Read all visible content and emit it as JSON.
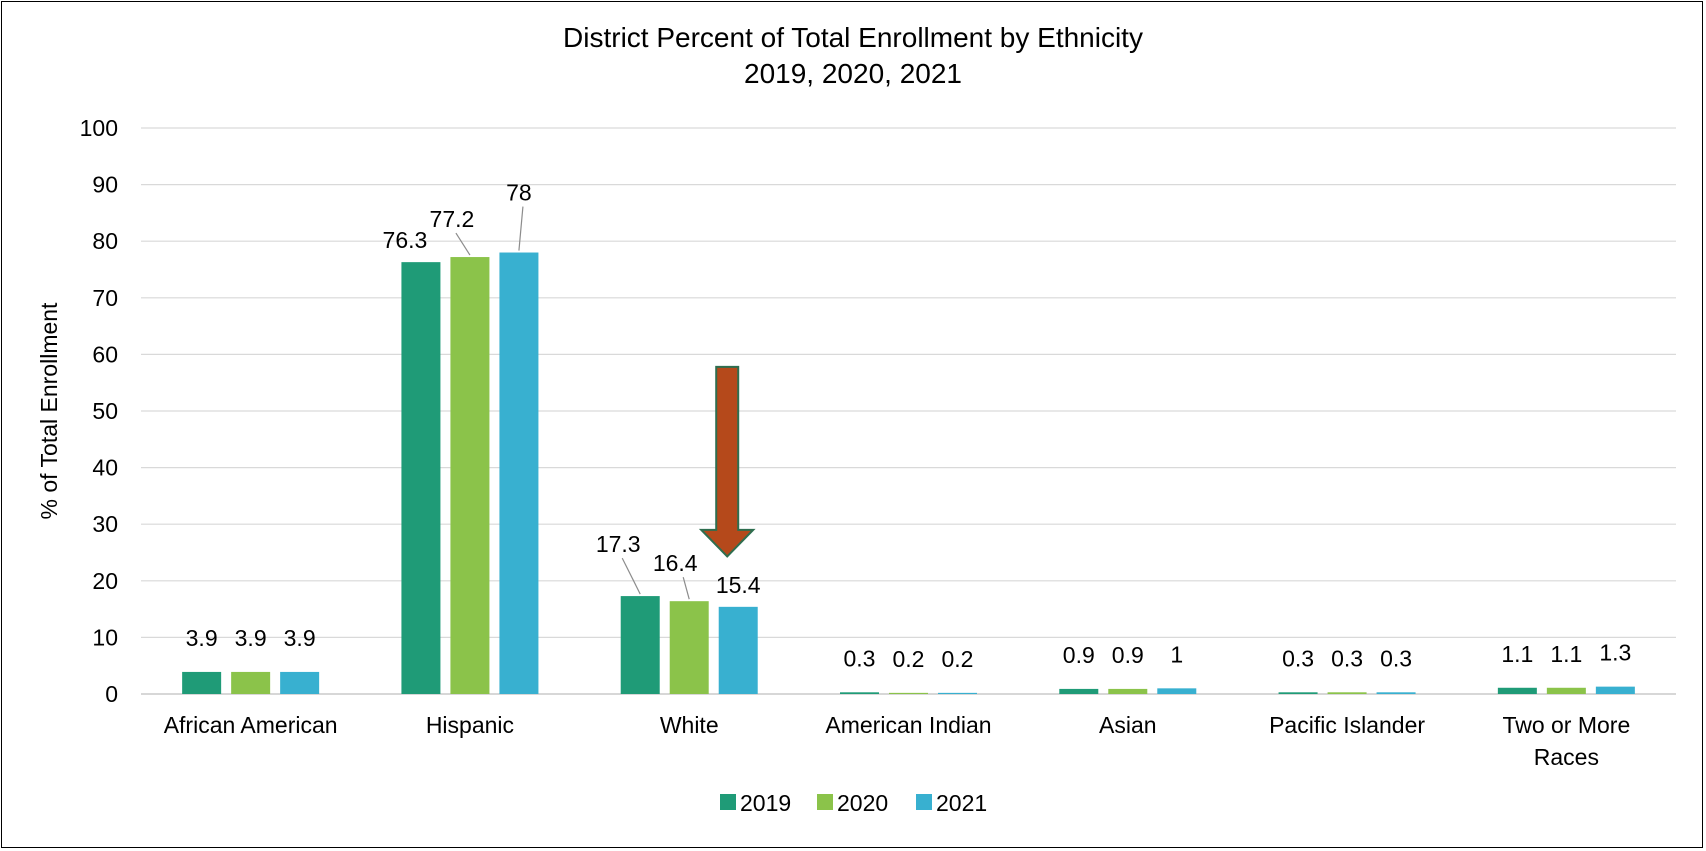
{
  "chart_data": {
    "type": "bar",
    "title": "District Percent of Total Enrollment by Ethnicity",
    "subtitle": "2019, 2020, 2021",
    "xlabel": "",
    "ylabel": "% of Total Enrollment",
    "ylim": [
      0,
      100
    ],
    "y_ticks": [
      "0",
      "10",
      "20",
      "30",
      "40",
      "50",
      "60",
      "70",
      "80",
      "90",
      "100"
    ],
    "grid": true,
    "legend_position": "bottom",
    "categories": [
      [
        "African American"
      ],
      [
        "Hispanic"
      ],
      [
        "White"
      ],
      [
        "American Indian"
      ],
      [
        "Asian"
      ],
      [
        "Pacific Islander"
      ],
      [
        "Two or More",
        "Races"
      ]
    ],
    "series": [
      {
        "name": "2019",
        "color": "#1f9b77",
        "values": [
          3.9,
          76.3,
          17.3,
          0.3,
          0.9,
          0.3,
          1.1
        ],
        "labels": [
          "3.9",
          "76.3",
          "17.3",
          "0.3",
          "0.9",
          "0.3",
          "1.1"
        ]
      },
      {
        "name": "2020",
        "color": "#8bc34a",
        "values": [
          3.9,
          77.2,
          16.4,
          0.2,
          0.9,
          0.3,
          1.1
        ],
        "labels": [
          "3.9",
          "77.2",
          "16.4",
          "0.2",
          "0.9",
          "0.3",
          "1.1"
        ]
      },
      {
        "name": "2021",
        "color": "#38b0d0",
        "values": [
          3.9,
          78,
          15.4,
          0.2,
          1,
          0.3,
          1.3
        ],
        "labels": [
          "3.9",
          "78",
          "15.4",
          "0.2",
          "1",
          "0.3",
          "1.3"
        ]
      }
    ],
    "annotations": [
      {
        "shape": "down-arrow",
        "category": "White",
        "color": "#b5491b",
        "outline": "#2e6e4f"
      }
    ]
  }
}
